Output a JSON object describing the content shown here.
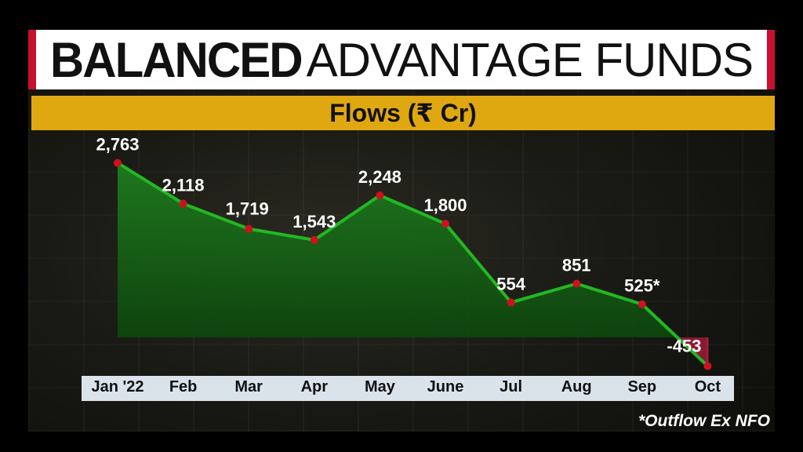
{
  "title": {
    "bold": "BALANCED",
    "light": "ADVANTAGE FUNDS"
  },
  "subtitle": "Flows (₹ Cr)",
  "footnote": "*Outflow Ex NFO",
  "colors": {
    "title_accent": "#c8102e",
    "subtitle_bar": "#e0a810",
    "line": "#22b822",
    "area_positive": "#1f7d1f",
    "area_negative": "#8a1a33",
    "marker": "#d01020",
    "axis_bar": "#dbe3ea"
  },
  "chart_data": {
    "type": "area",
    "title": "Flows (₹ Cr)",
    "categories": [
      "Jan '22",
      "Feb",
      "Mar",
      "Apr",
      "May",
      "June",
      "Jul",
      "Aug",
      "Sep",
      "Oct"
    ],
    "values": [
      2763,
      2118,
      1719,
      1543,
      2248,
      1800,
      554,
      851,
      525,
      -453
    ],
    "data_labels": [
      "2,763",
      "2,118",
      "1,719",
      "1,543",
      "2,248",
      "1,800",
      "554",
      "851",
      "525*",
      "-453"
    ],
    "baseline": 0,
    "grid": false,
    "legend": "none"
  }
}
